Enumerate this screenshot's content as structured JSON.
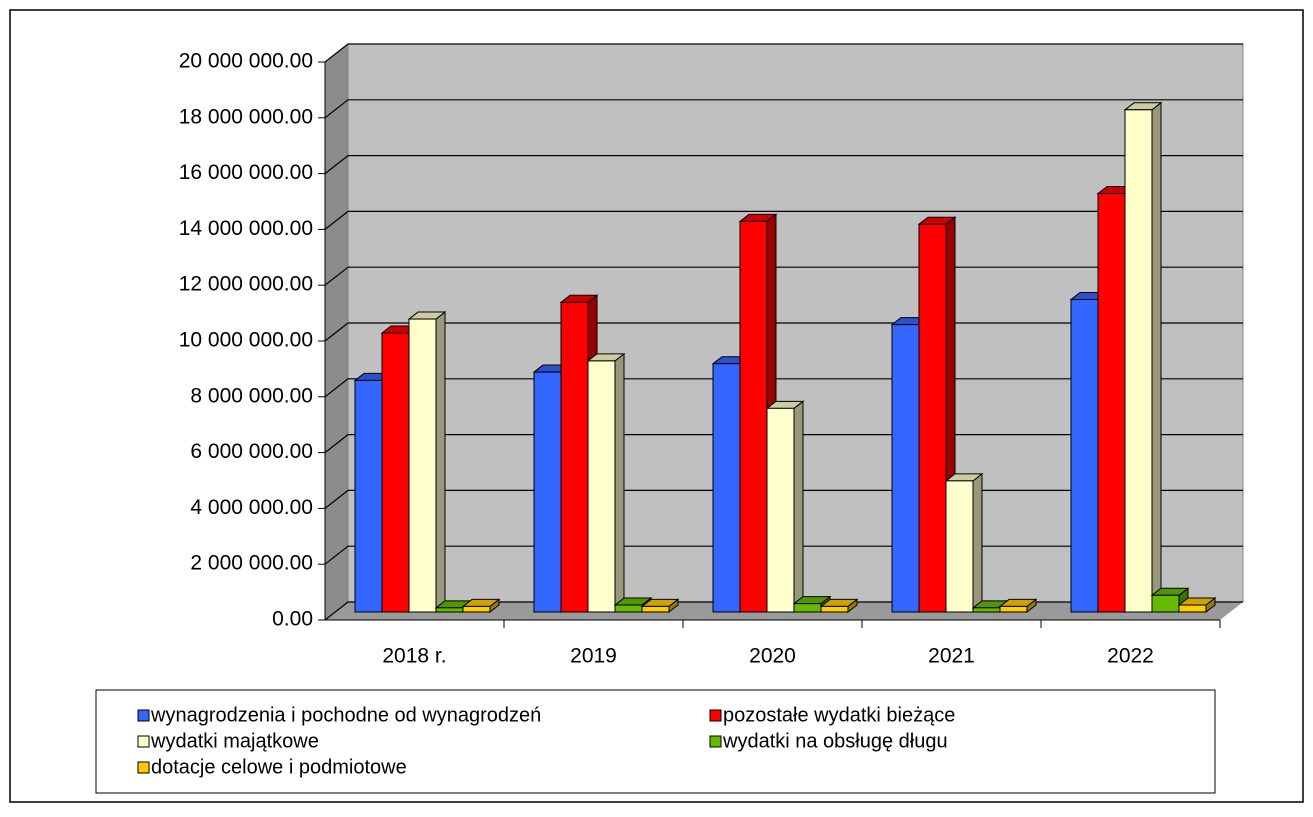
{
  "chart_data": {
    "type": "bar3d",
    "categories": [
      "2018 r.",
      "2019",
      "2020",
      "2021",
      "2022"
    ],
    "series": [
      {
        "name": "wynagrodzenia i pochodne od wynagrodzeń",
        "color": "#3366ff",
        "values": [
          8300000,
          8600000,
          8900000,
          10300000,
          11200000
        ]
      },
      {
        "name": "pozostałe wydatki bieżące",
        "color": "#ff0000",
        "values": [
          10000000,
          11100000,
          14000000,
          13900000,
          15000000
        ]
      },
      {
        "name": "wydatki majątkowe",
        "color": "#ffffcc",
        "values": [
          10500000,
          9000000,
          7300000,
          4700000,
          18000000
        ]
      },
      {
        "name": "wydatki na obsługę długu",
        "color": "#66bb00",
        "values": [
          150000,
          250000,
          300000,
          150000,
          600000
        ]
      },
      {
        "name": "dotacje celowe i podmiotowe",
        "color": "#ffcc00",
        "values": [
          200000,
          200000,
          200000,
          200000,
          250000
        ]
      }
    ],
    "ylim": [
      0,
      20000000
    ],
    "yticks": [
      {
        "value": 0,
        "label": "0.00"
      },
      {
        "value": 2000000,
        "label": "2 000 000.00"
      },
      {
        "value": 4000000,
        "label": "4 000 000.00"
      },
      {
        "value": 6000000,
        "label": "6 000 000.00"
      },
      {
        "value": 8000000,
        "label": "8 000 000.00"
      },
      {
        "value": 10000000,
        "label": "10 000 000.00"
      },
      {
        "value": 12000000,
        "label": "12 000 000.00"
      },
      {
        "value": 14000000,
        "label": "14 000 000.00"
      },
      {
        "value": 16000000,
        "label": "16 000 000.00"
      },
      {
        "value": 18000000,
        "label": "18 000 000.00"
      },
      {
        "value": 20000000,
        "label": "20 000 000.00"
      }
    ],
    "grid": true,
    "legend": "bottom"
  }
}
